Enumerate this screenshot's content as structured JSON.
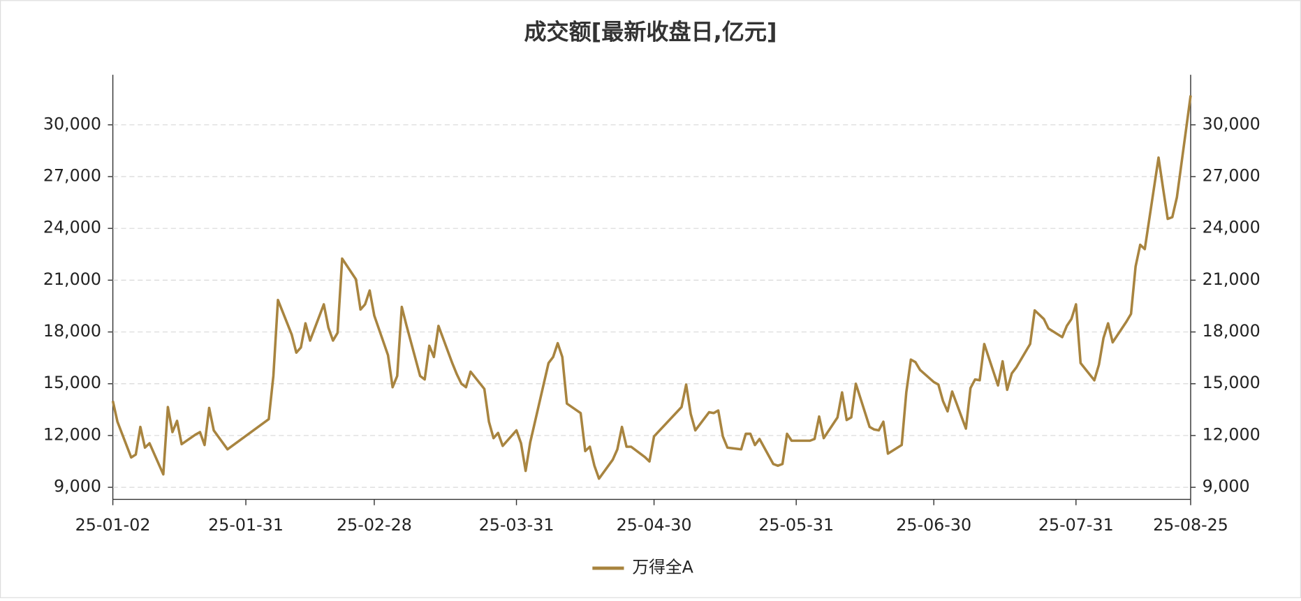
{
  "chart_data": {
    "type": "line",
    "title": "成交额[最新收盘日,亿元]",
    "x": [
      "25-01-02",
      "25-01-03",
      "25-01-06",
      "25-01-07",
      "25-01-08",
      "25-01-09",
      "25-01-10",
      "25-01-13",
      "25-01-14",
      "25-01-15",
      "25-01-16",
      "25-01-17",
      "25-01-20",
      "25-01-21",
      "25-01-22",
      "25-01-23",
      "25-01-24",
      "25-01-27",
      "25-02-05",
      "25-02-06",
      "25-02-07",
      "25-02-10",
      "25-02-11",
      "25-02-12",
      "25-02-13",
      "25-02-14",
      "25-02-17",
      "25-02-18",
      "25-02-19",
      "25-02-20",
      "25-02-21",
      "25-02-24",
      "25-02-25",
      "25-02-26",
      "25-02-27",
      "25-02-28",
      "25-03-03",
      "25-03-04",
      "25-03-05",
      "25-03-06",
      "25-03-07",
      "25-03-10",
      "25-03-11",
      "25-03-12",
      "25-03-13",
      "25-03-14",
      "25-03-17",
      "25-03-18",
      "25-03-19",
      "25-03-20",
      "25-03-21",
      "25-03-24",
      "25-03-25",
      "25-03-26",
      "25-03-27",
      "25-03-28",
      "25-03-31",
      "25-04-01",
      "25-04-02",
      "25-04-03",
      "25-04-07",
      "25-04-08",
      "25-04-09",
      "25-04-10",
      "25-04-11",
      "25-04-14",
      "25-04-15",
      "25-04-16",
      "25-04-17",
      "25-04-18",
      "25-04-21",
      "25-04-22",
      "25-04-23",
      "25-04-24",
      "25-04-25",
      "25-04-28",
      "25-04-29",
      "25-04-30",
      "25-05-06",
      "25-05-07",
      "25-05-08",
      "25-05-09",
      "25-05-12",
      "25-05-13",
      "25-05-14",
      "25-05-15",
      "25-05-16",
      "25-05-19",
      "25-05-20",
      "25-05-21",
      "25-05-22",
      "25-05-23",
      "25-05-26",
      "25-05-27",
      "25-05-28",
      "25-05-29",
      "25-05-30",
      "25-06-03",
      "25-06-04",
      "25-06-05",
      "25-06-06",
      "25-06-09",
      "25-06-10",
      "25-06-11",
      "25-06-12",
      "25-06-13",
      "25-06-16",
      "25-06-17",
      "25-06-18",
      "25-06-19",
      "25-06-20",
      "25-06-23",
      "25-06-24",
      "25-06-25",
      "25-06-26",
      "25-06-27",
      "25-06-30",
      "25-07-01",
      "25-07-02",
      "25-07-03",
      "25-07-04",
      "25-07-07",
      "25-07-08",
      "25-07-09",
      "25-07-10",
      "25-07-11",
      "25-07-14",
      "25-07-15",
      "25-07-16",
      "25-07-17",
      "25-07-18",
      "25-07-21",
      "25-07-22",
      "25-07-23",
      "25-07-24",
      "25-07-25",
      "25-07-28",
      "25-07-29",
      "25-07-30",
      "25-07-31",
      "25-08-01",
      "25-08-04",
      "25-08-05",
      "25-08-06",
      "25-08-07",
      "25-08-08",
      "25-08-11",
      "25-08-12",
      "25-08-13",
      "25-08-14",
      "25-08-15",
      "25-08-18",
      "25-08-19",
      "25-08-20",
      "25-08-21",
      "25-08-22",
      "25-08-25"
    ],
    "series": [
      {
        "name": "万得全A",
        "color": "#a8843f",
        "values": [
          14000,
          12800,
          10730,
          10900,
          12500,
          11300,
          11550,
          9750,
          13650,
          12200,
          12850,
          11500,
          12050,
          12200,
          11450,
          13600,
          12300,
          11200,
          12950,
          15450,
          19850,
          17850,
          16800,
          17100,
          18500,
          17500,
          19600,
          18250,
          17500,
          17950,
          22250,
          21050,
          19300,
          19600,
          20400,
          18950,
          16650,
          14800,
          15450,
          19450,
          18400,
          15450,
          15250,
          17200,
          16550,
          18350,
          16200,
          15550,
          15000,
          14800,
          15700,
          14700,
          12800,
          11850,
          12150,
          11400,
          12300,
          11550,
          9950,
          11600,
          16200,
          16550,
          17350,
          16550,
          13850,
          13300,
          11100,
          11350,
          10250,
          9500,
          10600,
          11200,
          12500,
          11350,
          11350,
          10750,
          10500,
          11950,
          13650,
          14950,
          13250,
          12300,
          13350,
          13300,
          13450,
          11950,
          11300,
          11200,
          12100,
          12100,
          11450,
          11800,
          10350,
          10250,
          10350,
          12100,
          11700,
          11700,
          11800,
          13100,
          11850,
          13050,
          14500,
          12900,
          13050,
          15000,
          12500,
          12350,
          12300,
          12800,
          10950,
          11450,
          14500,
          16400,
          16250,
          15800,
          15100,
          14950,
          14000,
          13400,
          14550,
          12400,
          14750,
          15250,
          15200,
          17300,
          14900,
          16300,
          14650,
          15600,
          15950,
          17300,
          19250,
          19000,
          18750,
          18200,
          17700,
          18350,
          18750,
          19600,
          16200,
          15200,
          16100,
          17650,
          18500,
          17400,
          18600,
          19050,
          21800,
          23050,
          22800,
          28100,
          26300,
          24550,
          24650,
          25800,
          31700
        ]
      }
    ],
    "xlim": [
      "25-01-02",
      "25-08-25"
    ],
    "xticks": [
      "25-01-02",
      "25-01-31",
      "25-02-28",
      "25-03-31",
      "25-04-30",
      "25-05-31",
      "25-06-30",
      "25-07-31",
      "25-08-25"
    ],
    "ylim": [
      8300,
      32900
    ],
    "yticks": [
      {
        "value": 9000,
        "label": "9,000"
      },
      {
        "value": 12000,
        "label": "12,000"
      },
      {
        "value": 15000,
        "label": "15,000"
      },
      {
        "value": 18000,
        "label": "18,000"
      },
      {
        "value": 21000,
        "label": "21,000"
      },
      {
        "value": 24000,
        "label": "24,000"
      },
      {
        "value": 27000,
        "label": "27,000"
      },
      {
        "value": 30000,
        "label": "30,000"
      }
    ],
    "y2lim": [
      8300,
      32900
    ],
    "y2ticks": [
      {
        "value": 9000,
        "label": "9,000"
      },
      {
        "value": 12000,
        "label": "12,000"
      },
      {
        "value": 15000,
        "label": "15,000"
      },
      {
        "value": 18000,
        "label": "18,000"
      },
      {
        "value": 21000,
        "label": "21,000"
      },
      {
        "value": 24000,
        "label": "24,000"
      },
      {
        "value": 27000,
        "label": "27,000"
      },
      {
        "value": 30000,
        "label": "30,000"
      }
    ],
    "grid": true,
    "legend": "bottom"
  }
}
